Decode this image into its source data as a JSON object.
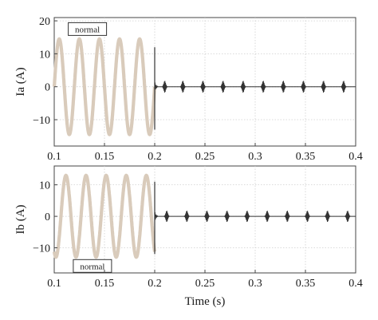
{
  "chart_data": [
    {
      "type": "line",
      "title": "",
      "xlabel": "",
      "ylabel": "Ia (A)",
      "xlim": [
        0.1,
        0.4
      ],
      "ylim": [
        -18,
        21
      ],
      "xticks": [
        0.1,
        0.15,
        0.2,
        0.25,
        0.3,
        0.35,
        0.4
      ],
      "xtick_labels": [
        "0.1",
        "0.15",
        "0.2",
        "0.25",
        "0.3",
        "0.35",
        "0.4"
      ],
      "yticks": [
        -10,
        0,
        10,
        20
      ],
      "ytick_labels": [
        "−10",
        "0",
        "10",
        "20"
      ],
      "grid": true,
      "annotation": {
        "text": "normal",
        "x": 0.133,
        "y": 17.5
      },
      "series": [
        {
          "name": "",
          "style": "thick-tan",
          "color": "#d9cbbb",
          "description": "sinusoid, amplitude 14.5 A, 50 Hz, from 0.1 s to 0.2 s",
          "amplitude": 14.5,
          "frequency_hz": 50,
          "t_start": 0.1,
          "t_end": 0.2
        },
        {
          "name": "",
          "style": "thin-dark",
          "color": "#333333",
          "step_at": 0.2,
          "step_range": [
            -13,
            12
          ],
          "burst_times": [
            0.21,
            0.228,
            0.248,
            0.268,
            0.288,
            0.308,
            0.328,
            0.348,
            0.368,
            0.388
          ],
          "burst_amplitude": 1.8
        }
      ]
    },
    {
      "type": "line",
      "title": "",
      "xlabel": "Time (s)",
      "ylabel": "Ib (A)",
      "xlim": [
        0.1,
        0.4
      ],
      "ylim": [
        -18,
        16
      ],
      "xticks": [
        0.1,
        0.15,
        0.2,
        0.25,
        0.3,
        0.35,
        0.4
      ],
      "xtick_labels": [
        "0.1",
        "0.15",
        "0.2",
        "0.25",
        "0.3",
        "0.35",
        "0.4"
      ],
      "yticks": [
        -10,
        0,
        10
      ],
      "ytick_labels": [
        "−10",
        "0",
        "10"
      ],
      "grid": true,
      "annotation": {
        "text": "normal",
        "x": 0.138,
        "y": -15.8
      },
      "series": [
        {
          "name": "",
          "style": "thick-tan",
          "color": "#d9cbbb",
          "amplitude": 13,
          "frequency_hz": 50,
          "phase_deg": -120,
          "t_start": 0.1,
          "t_end": 0.2
        },
        {
          "name": "",
          "style": "thin-dark",
          "color": "#333333",
          "step_at": 0.2,
          "step_range": [
            -12,
            11
          ],
          "burst_times": [
            0.212,
            0.232,
            0.252,
            0.272,
            0.292,
            0.312,
            0.332,
            0.352,
            0.372,
            0.392
          ],
          "burst_amplitude": 1.8
        }
      ]
    }
  ]
}
